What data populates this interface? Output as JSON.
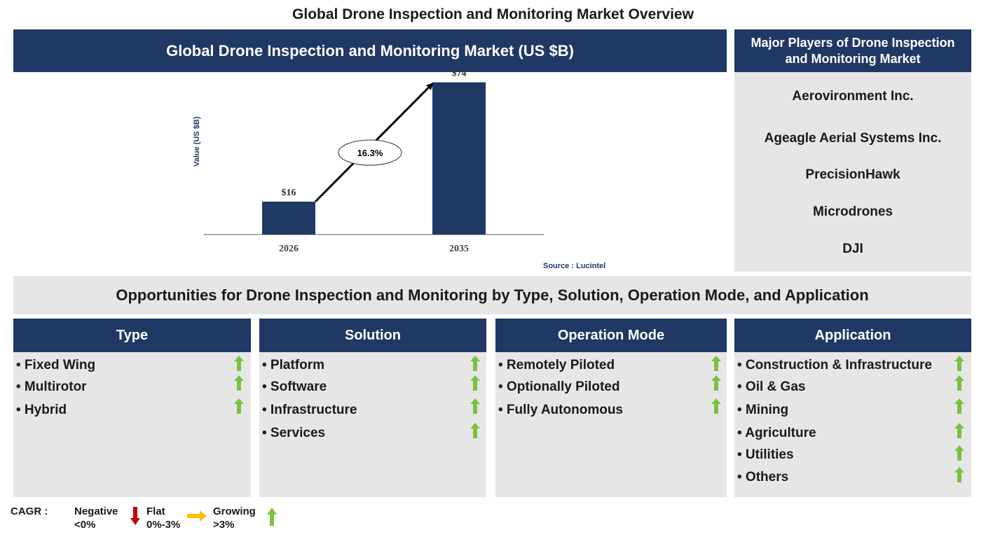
{
  "page_title": "Global Drone Inspection and Monitoring Market Overview",
  "chart_panel": {
    "header": "Global Drone Inspection and Monitoring Market (US $B)",
    "source": "Source : Lucintel"
  },
  "chart_data": {
    "type": "bar",
    "categories": [
      "2026",
      "2035"
    ],
    "values": [
      16,
      74
    ],
    "value_labels": [
      "$16",
      "$74"
    ],
    "ylabel": "Value (US $B)",
    "xlabel": "",
    "ylim": [
      0,
      80
    ],
    "grid": false,
    "bar_color": "#1f3864",
    "annotation": {
      "type": "cagr-arrow",
      "label": "16.3%"
    }
  },
  "players": {
    "header": "Major Players of Drone Inspection and Monitoring Market",
    "items": [
      "Aerovironment Inc.",
      "Ageagle Aerial Systems Inc.",
      "PrecisionHawk",
      "Microdrones",
      "DJI"
    ]
  },
  "opportunities": {
    "banner": "Opportunities for Drone Inspection and Monitoring by Type, Solution, Operation Mode, and Application",
    "columns": [
      {
        "header": "Type",
        "items": [
          "• Fixed Wing",
          "• Multirotor",
          "• Hybrid"
        ],
        "trend": "growing"
      },
      {
        "header": "Solution",
        "items": [
          "• Platform",
          "• Software",
          "• Infrastructure",
          "• Services"
        ],
        "trend": "growing"
      },
      {
        "header": "Operation Mode",
        "items": [
          "• Remotely Piloted",
          "• Optionally Piloted",
          "• Fully Autonomous"
        ],
        "trend": "growing"
      },
      {
        "header": "Application",
        "items": [
          "• Construction & Infrastructure",
          "• Oil & Gas",
          "• Mining",
          "• Agriculture",
          "• Utilities",
          "• Others"
        ],
        "trend": "growing"
      }
    ]
  },
  "legend": {
    "label": "CAGR :",
    "negative": {
      "name": "Negative",
      "range": "<0%",
      "icon": "down-arrow-icon"
    },
    "flat": {
      "name": "Flat",
      "range": "0%-3%",
      "icon": "right-arrow-icon"
    },
    "growing": {
      "name": "Growing",
      "range": ">3%",
      "icon": "up-arrow-icon"
    }
  },
  "colors": {
    "navy": "#1f3864",
    "panel_gray": "#e7e6e6",
    "up_green": "#7ac143",
    "down_red": "#c00000",
    "flat_orange": "#ffc000"
  }
}
